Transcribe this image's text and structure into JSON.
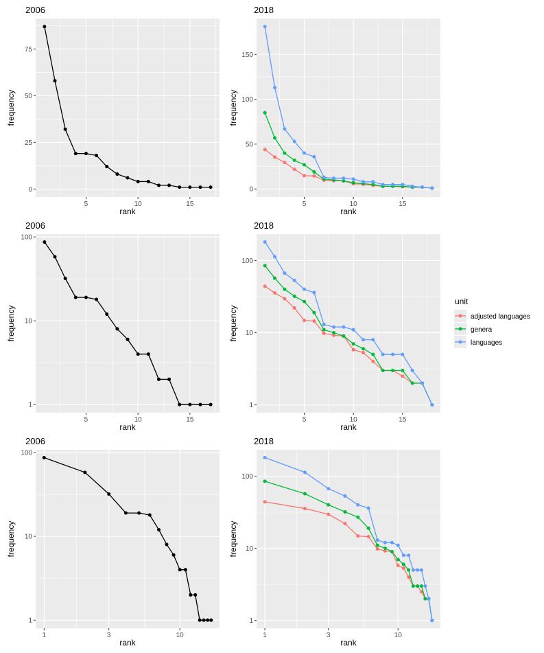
{
  "legend": {
    "title": "unit",
    "entries": [
      {
        "label": "adjusted languages",
        "color": "#F8766D"
      },
      {
        "label": "genera",
        "color": "#00BA38"
      },
      {
        "label": "languages",
        "color": "#619CFF"
      }
    ]
  },
  "chart_data": [
    {
      "type": "line",
      "title": "2006",
      "xlabel": "rank",
      "ylabel": "frequency",
      "xscale": "linear",
      "yscale": "linear",
      "xlim": [
        0.15,
        17.85
      ],
      "ylim": [
        -4.3,
        91.3
      ],
      "xticks": [
        5,
        10,
        15
      ],
      "yticks": [
        0,
        25,
        50,
        75
      ],
      "series": [
        {
          "color": "#000000",
          "x": [
            1,
            2,
            3,
            4,
            5,
            6,
            7,
            8,
            9,
            10,
            11,
            12,
            13,
            14,
            15,
            16,
            17
          ],
          "values": [
            87,
            58,
            32,
            19,
            19,
            18,
            12,
            8,
            6,
            4,
            4,
            2,
            2,
            1,
            1,
            1,
            1
          ]
        }
      ]
    },
    {
      "type": "line",
      "title": "2018",
      "xlabel": "rank",
      "ylabel": "frequency",
      "xscale": "linear",
      "yscale": "linear",
      "xlim": [
        0.15,
        18.85
      ],
      "ylim": [
        -9,
        190
      ],
      "xticks": [
        5,
        10,
        15
      ],
      "yticks": [
        0,
        50,
        100,
        150
      ],
      "series": [
        {
          "name": "adjusted languages",
          "color": "#F8766D",
          "x": [
            1,
            2,
            3,
            4,
            5,
            6,
            7,
            8,
            9,
            10,
            11,
            12,
            13,
            14,
            15,
            16,
            17,
            18
          ],
          "values": [
            44,
            35.6,
            29.6,
            22,
            14.8,
            14.5,
            9.8,
            9.2,
            9,
            5.8,
            5.3,
            4,
            3,
            3,
            2.5,
            2,
            2,
            1
          ]
        },
        {
          "name": "genera",
          "color": "#00BA38",
          "x": [
            1,
            2,
            3,
            4,
            5,
            6,
            7,
            8,
            9,
            10,
            11,
            12,
            13,
            14,
            15,
            16,
            17,
            18
          ],
          "values": [
            85,
            57,
            40,
            32,
            27,
            19,
            11,
            10,
            9,
            7,
            6,
            5,
            3,
            3,
            3,
            2,
            2,
            1
          ]
        },
        {
          "name": "languages",
          "color": "#619CFF",
          "x": [
            1,
            2,
            3,
            4,
            5,
            6,
            7,
            8,
            9,
            10,
            11,
            12,
            13,
            14,
            15,
            16,
            17,
            18
          ],
          "values": [
            181,
            113,
            67,
            53,
            40,
            36,
            13,
            12,
            12,
            11,
            8,
            8,
            5,
            5,
            5,
            3,
            2,
            1
          ]
        }
      ]
    },
    {
      "type": "line",
      "title": "2006",
      "xlabel": "rank",
      "ylabel": "frequency",
      "xscale": "linear",
      "yscale": "log10",
      "xlim": [
        0.15,
        17.85
      ],
      "ylim": [
        0.8,
        108
      ],
      "xticks": [
        5,
        10,
        15
      ],
      "yticks": [
        1,
        10,
        100
      ],
      "series": [
        {
          "color": "#000000",
          "x": [
            1,
            2,
            3,
            4,
            5,
            6,
            7,
            8,
            9,
            10,
            11,
            12,
            13,
            14,
            15,
            16,
            17
          ],
          "values": [
            87,
            58,
            32,
            19,
            19,
            18,
            12,
            8,
            6,
            4,
            4,
            2,
            2,
            1,
            1,
            1,
            1
          ]
        }
      ]
    },
    {
      "type": "line",
      "title": "2018",
      "xlabel": "rank",
      "ylabel": "frequency",
      "xscale": "linear",
      "yscale": "log10",
      "xlim": [
        0.15,
        18.85
      ],
      "ylim": [
        0.78,
        232
      ],
      "xticks": [
        5,
        10,
        15
      ],
      "yticks": [
        1,
        10,
        100
      ],
      "series": [
        {
          "name": "adjusted languages",
          "color": "#F8766D",
          "x": [
            1,
            2,
            3,
            4,
            5,
            6,
            7,
            8,
            9,
            10,
            11,
            12,
            13,
            14,
            15,
            16,
            17,
            18
          ],
          "values": [
            44,
            35.6,
            29.6,
            22,
            14.8,
            14.5,
            9.8,
            9.2,
            9,
            5.8,
            5.3,
            4,
            3,
            3,
            2.5,
            2,
            2,
            1
          ]
        },
        {
          "name": "genera",
          "color": "#00BA38",
          "x": [
            1,
            2,
            3,
            4,
            5,
            6,
            7,
            8,
            9,
            10,
            11,
            12,
            13,
            14,
            15,
            16,
            17,
            18
          ],
          "values": [
            85,
            57,
            40,
            32,
            27,
            19,
            11,
            10,
            9,
            7,
            6,
            5,
            3,
            3,
            3,
            2,
            2,
            1
          ]
        },
        {
          "name": "languages",
          "color": "#619CFF",
          "x": [
            1,
            2,
            3,
            4,
            5,
            6,
            7,
            8,
            9,
            10,
            11,
            12,
            13,
            14,
            15,
            16,
            17,
            18
          ],
          "values": [
            181,
            113,
            67,
            53,
            40,
            36,
            13,
            12,
            12,
            11,
            8,
            8,
            5,
            5,
            5,
            3,
            2,
            1
          ]
        }
      ]
    },
    {
      "type": "line",
      "title": "2006",
      "xlabel": "rank",
      "ylabel": "frequency",
      "xscale": "log10",
      "yscale": "log10",
      "xlim": [
        0.867,
        19.6
      ],
      "ylim": [
        0.8,
        108
      ],
      "xticks": [
        1,
        3,
        10
      ],
      "yticks": [
        1,
        10,
        100
      ],
      "series": [
        {
          "color": "#000000",
          "x": [
            1,
            2,
            3,
            4,
            5,
            6,
            7,
            8,
            9,
            10,
            11,
            12,
            13,
            14,
            15,
            16,
            17
          ],
          "values": [
            87,
            58,
            32,
            19,
            19,
            18,
            12,
            8,
            6,
            4,
            4,
            2,
            2,
            1,
            1,
            1,
            1
          ]
        }
      ]
    },
    {
      "type": "line",
      "title": "2018",
      "xlabel": "rank",
      "ylabel": "frequency",
      "xscale": "log10",
      "yscale": "log10",
      "xlim": [
        0.867,
        20.8
      ],
      "ylim": [
        0.78,
        232
      ],
      "xticks": [
        1,
        3,
        10
      ],
      "yticks": [
        1,
        10,
        100
      ],
      "series": [
        {
          "name": "adjusted languages",
          "color": "#F8766D",
          "x": [
            1,
            2,
            3,
            4,
            5,
            6,
            7,
            8,
            9,
            10,
            11,
            12,
            13,
            14,
            15,
            16,
            17,
            18
          ],
          "values": [
            44,
            35.6,
            29.6,
            22,
            14.8,
            14.5,
            9.8,
            9.2,
            9,
            5.8,
            5.3,
            4,
            3,
            3,
            2.5,
            2,
            2,
            1
          ]
        },
        {
          "name": "genera",
          "color": "#00BA38",
          "x": [
            1,
            2,
            3,
            4,
            5,
            6,
            7,
            8,
            9,
            10,
            11,
            12,
            13,
            14,
            15,
            16,
            17,
            18
          ],
          "values": [
            85,
            57,
            40,
            32,
            27,
            19,
            11,
            10,
            9,
            7,
            6,
            5,
            3,
            3,
            3,
            2,
            2,
            1
          ]
        },
        {
          "name": "languages",
          "color": "#619CFF",
          "x": [
            1,
            2,
            3,
            4,
            5,
            6,
            7,
            8,
            9,
            10,
            11,
            12,
            13,
            14,
            15,
            16,
            17,
            18
          ],
          "values": [
            181,
            113,
            67,
            53,
            40,
            36,
            13,
            12,
            12,
            11,
            8,
            8,
            5,
            5,
            5,
            3,
            2,
            1
          ]
        }
      ]
    }
  ]
}
